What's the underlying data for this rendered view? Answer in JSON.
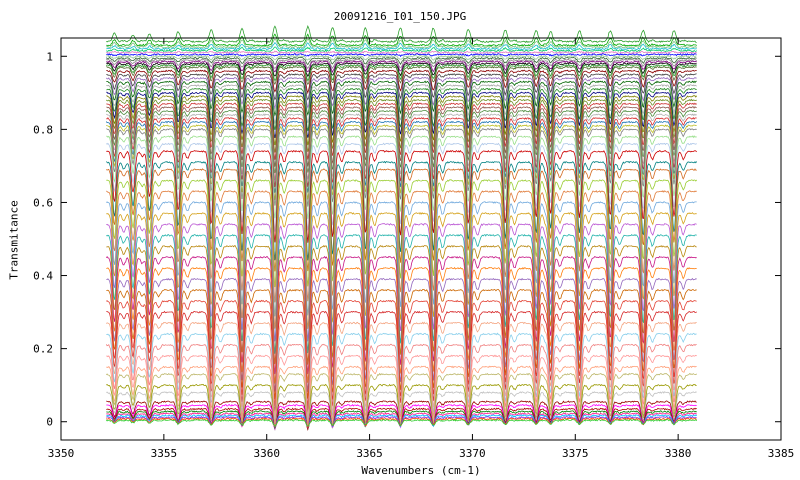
{
  "chart_data": {
    "type": "line",
    "title": "20091216_I01_150.JPG",
    "xlabel": "Wavenumbers (cm-1)",
    "ylabel": "Transmitance",
    "xlim": [
      3350,
      3385
    ],
    "ylim": [
      -0.05,
      1.05
    ],
    "x_ticks": [
      "3350",
      "3355",
      "3360",
      "3365",
      "3370",
      "3375",
      "3380",
      "3385"
    ],
    "y_ticks": [
      "0",
      "0.2",
      "0.4",
      "0.6",
      "0.8",
      "1"
    ],
    "grid": false,
    "legend": "none",
    "x_data_range": [
      3352.2,
      3380.9
    ],
    "absorption_lines": [
      {
        "x": 3352.6,
        "depth": 0.55
      },
      {
        "x": 3353.5,
        "depth": 0.45
      },
      {
        "x": 3354.3,
        "depth": 0.5
      },
      {
        "x": 3355.7,
        "depth": 0.65
      },
      {
        "x": 3357.3,
        "depth": 0.8
      },
      {
        "x": 3358.8,
        "depth": 0.9
      },
      {
        "x": 3360.4,
        "depth": 1.0
      },
      {
        "x": 3362.0,
        "depth": 1.0
      },
      {
        "x": 3363.2,
        "depth": 0.95
      },
      {
        "x": 3364.8,
        "depth": 0.9
      },
      {
        "x": 3366.5,
        "depth": 0.92
      },
      {
        "x": 3368.1,
        "depth": 0.9
      },
      {
        "x": 3369.8,
        "depth": 0.8
      },
      {
        "x": 3371.6,
        "depth": 0.78
      },
      {
        "x": 3373.1,
        "depth": 0.72
      },
      {
        "x": 3373.8,
        "depth": 0.68
      },
      {
        "x": 3375.2,
        "depth": 0.72
      },
      {
        "x": 3376.7,
        "depth": 0.7
      },
      {
        "x": 3378.3,
        "depth": 0.75
      },
      {
        "x": 3379.8,
        "depth": 0.72
      }
    ],
    "series_baselines": [
      1.04,
      1.03,
      1.025,
      1.02,
      1.015,
      1.01,
      1.005,
      1.0,
      0.995,
      0.99,
      0.985,
      0.98,
      0.975,
      0.97,
      0.96,
      0.95,
      0.94,
      0.93,
      0.92,
      0.91,
      0.9,
      0.89,
      0.88,
      0.87,
      0.86,
      0.85,
      0.84,
      0.83,
      0.82,
      0.81,
      0.8,
      0.78,
      0.76,
      0.74,
      0.71,
      0.69,
      0.66,
      0.63,
      0.6,
      0.57,
      0.54,
      0.51,
      0.48,
      0.45,
      0.42,
      0.39,
      0.36,
      0.33,
      0.3,
      0.27,
      0.24,
      0.21,
      0.18,
      0.15,
      0.13,
      0.1,
      0.08,
      0.055,
      0.045,
      0.035,
      0.028,
      0.022,
      0.017,
      0.012,
      0.008,
      0.004
    ],
    "series_colors": [
      "#2ca02c",
      "#00aa00",
      "#7fbf7f",
      "#17becf",
      "#00cc66",
      "#e377c2",
      "#0000ff",
      "#99cc99",
      "#336633",
      "#888888",
      "#800080",
      "#000000",
      "#2ca02c",
      "#556b2f",
      "#8b0000",
      "#404040",
      "#9467bd",
      "#006400",
      "#a9a9a9",
      "#228b22",
      "#000080",
      "#808000",
      "#6b8e23",
      "#cc3333",
      "#8c564b",
      "#4b8b3b",
      "#b0b0b0",
      "#d62728",
      "#1f77b4",
      "#bcbd22",
      "#7f7f7f",
      "#98df8a",
      "#aec7e8",
      "#cc0000",
      "#008080",
      "#d2691e",
      "#9acd32",
      "#e07b39",
      "#6fa8dc",
      "#d4a017",
      "#ba55d3",
      "#20b2aa",
      "#b8860b",
      "#c71585",
      "#ff7f0e",
      "#9467bd",
      "#cc6600",
      "#e34234",
      "#d62728",
      "#f4a582",
      "#87ceeb",
      "#f08080",
      "#ff9999",
      "#ffa07a",
      "#bdb76b",
      "#999900",
      "#c0c0c0",
      "#990000",
      "#ff00ff",
      "#aa0000",
      "#008000",
      "#ff1493",
      "#00bfff",
      "#8a2be2",
      "#ff4500",
      "#32cd32"
    ]
  }
}
